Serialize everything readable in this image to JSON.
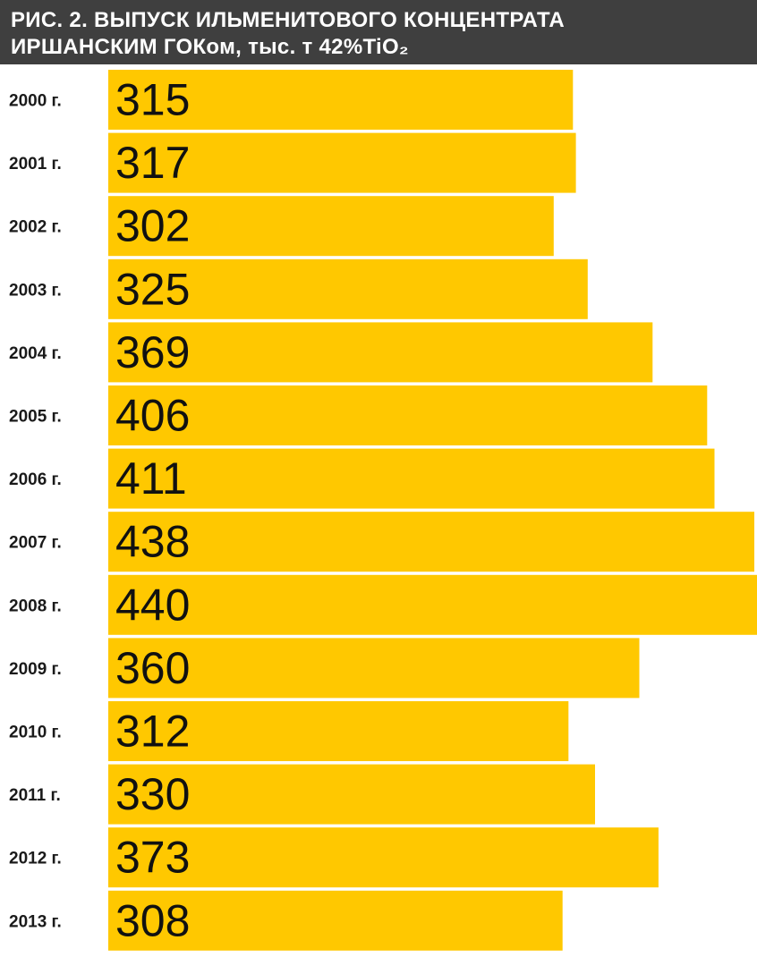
{
  "title": {
    "line1": "РИС. 2. ВЫПУСК ИЛЬМЕНИТОВОГО КОНЦЕНТРАТА",
    "line2": "ИРШАНСКИМ ГОКом, тыс. т 42%TiO₂"
  },
  "colors": {
    "bar": "#ffc800",
    "title_background": "#3f3f3f"
  },
  "chart_data": {
    "type": "bar",
    "orientation": "horizontal",
    "title": "РИС. 2. ВЫПУСК ИЛЬМЕНИТОВОГО КОНЦЕНТРАТА ИРШАНСКИМ ГОКом, тыс. т 42%TiO₂",
    "xlabel": "",
    "ylabel": "",
    "categories": [
      "2000 г.",
      "2001 г.",
      "2002 г.",
      "2003 г.",
      "2004 г.",
      "2005 г.",
      "2006 г.",
      "2007 г.",
      "2008 г.",
      "2009 г.",
      "2010 г.",
      "2011 г.",
      "2012 г.",
      "2013 г."
    ],
    "values": [
      315,
      317,
      302,
      325,
      369,
      406,
      411,
      438,
      440,
      360,
      312,
      330,
      373,
      308
    ],
    "data_labels": [
      "315",
      "317",
      "302",
      "325",
      "369",
      "406",
      "411",
      "438",
      "440",
      "360",
      "312",
      "330",
      "373",
      "308"
    ],
    "grid": false,
    "legend": "none"
  }
}
